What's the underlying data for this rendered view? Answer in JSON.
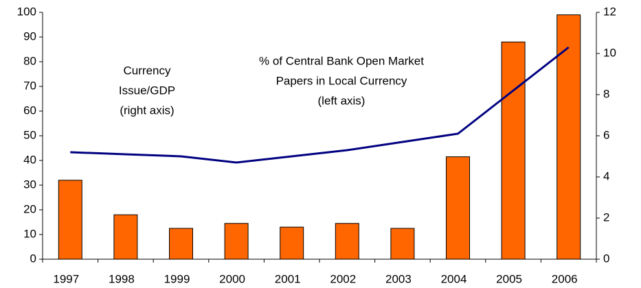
{
  "chart_data": {
    "type": "bar",
    "annotations": [
      {
        "lines": [
          "Currency",
          "Issue/GDP",
          "(right axis)"
        ]
      },
      {
        "lines": [
          "% of Central Bank Open Market",
          "Papers in Local Currency",
          "(left axis)"
        ]
      }
    ],
    "categories": [
      "1997",
      "1998",
      "1999",
      "2000",
      "2001",
      "2002",
      "2003",
      "2004",
      "2005",
      "2006"
    ],
    "series": [
      {
        "type": "bar",
        "color": "#ff6600",
        "values": [
          32,
          18,
          12.5,
          14.5,
          13,
          14.5,
          12.5,
          41.5,
          88,
          99
        ]
      },
      {
        "type": "line",
        "axis": "y2",
        "color": "#000080",
        "values": [
          5.2,
          5.1,
          5.0,
          4.7,
          5.0,
          5.3,
          5.7,
          6.1,
          8.2,
          10.3
        ]
      }
    ],
    "ylim": [
      0,
      100
    ],
    "yticks": [
      0,
      10,
      20,
      30,
      40,
      50,
      60,
      70,
      80,
      90,
      100
    ],
    "y2lim": [
      0,
      12
    ],
    "y2ticks": [
      0,
      2,
      4,
      6,
      8,
      10,
      12
    ]
  }
}
